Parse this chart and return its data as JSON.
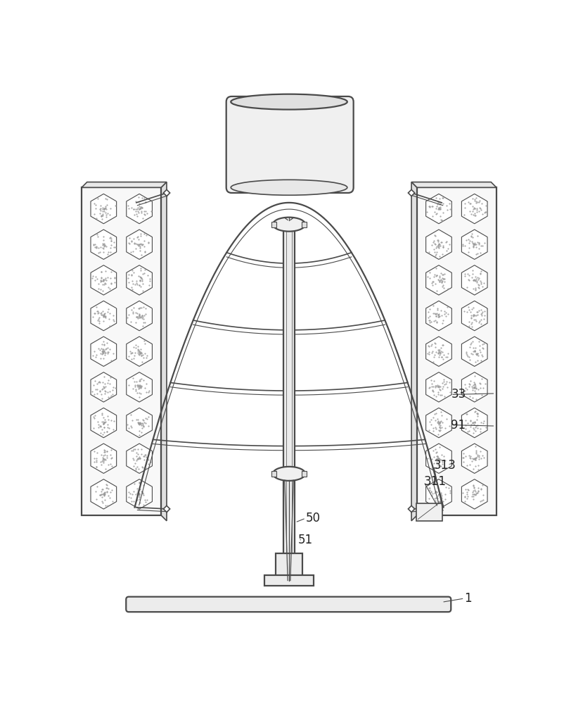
{
  "bg_color": "#ffffff",
  "line_color": "#4a4a4a",
  "line_color_dark": "#333333",
  "label_color": "#222222",
  "fig_width": 8.02,
  "fig_height": 10.0,
  "labels": [
    [
      "1",
      725,
      948
    ],
    [
      "33",
      700,
      572
    ],
    [
      "91",
      700,
      628
    ],
    [
      "313",
      668,
      703
    ],
    [
      "311",
      650,
      733
    ],
    [
      "50",
      432,
      800
    ],
    [
      "51",
      418,
      840
    ]
  ]
}
